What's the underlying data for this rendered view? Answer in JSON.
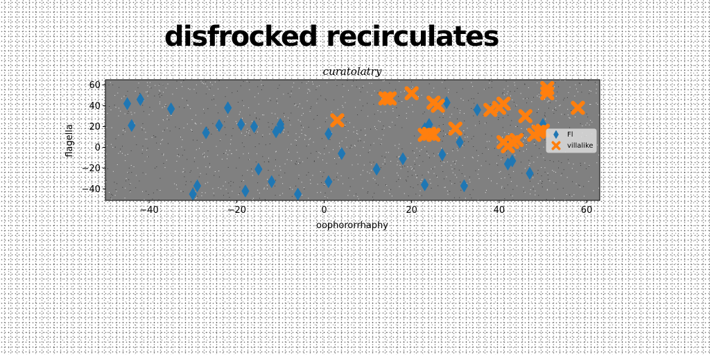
{
  "header": {
    "title": "disfrocked recirculates"
  },
  "chart_data": {
    "type": "scatter",
    "title": "curatolatry",
    "xlabel": "oophororrhaphy",
    "ylabel": "flagella",
    "xlim": [
      -50,
      63
    ],
    "ylim": [
      -51,
      65
    ],
    "x_ticks": [
      -40,
      -20,
      0,
      20,
      40,
      60
    ],
    "y_ticks": [
      -40,
      -20,
      0,
      20,
      40,
      60
    ],
    "grid": false,
    "legend_position": "right",
    "plot_background": "#808080",
    "series": [
      {
        "name": "Fl",
        "marker": "diamond",
        "color": "#1f77b4",
        "points": [
          [
            -45,
            42
          ],
          [
            -44,
            21
          ],
          [
            -42,
            46
          ],
          [
            -35,
            37
          ],
          [
            -30,
            -45
          ],
          [
            -29,
            -37
          ],
          [
            -27,
            14
          ],
          [
            -24,
            21
          ],
          [
            -22,
            38
          ],
          [
            -19,
            22
          ],
          [
            -18,
            -42
          ],
          [
            -16,
            20
          ],
          [
            -15,
            -21
          ],
          [
            -12,
            -33
          ],
          [
            -11,
            15
          ],
          [
            -10,
            19
          ],
          [
            -10,
            22
          ],
          [
            -6,
            -45
          ],
          [
            1,
            13
          ],
          [
            1,
            -33
          ],
          [
            4,
            -6
          ],
          [
            12,
            -21
          ],
          [
            18,
            -11
          ],
          [
            23,
            18
          ],
          [
            24,
            22
          ],
          [
            23,
            -36
          ],
          [
            27,
            -7
          ],
          [
            28,
            43
          ],
          [
            31,
            5
          ],
          [
            32,
            -37
          ],
          [
            35,
            36
          ],
          [
            42,
            -16
          ],
          [
            43,
            -13
          ],
          [
            47,
            -25
          ],
          [
            50,
            22
          ]
        ]
      },
      {
        "name": "villalike",
        "marker": "x",
        "color": "#ff7f0e",
        "points": [
          [
            3,
            26
          ],
          [
            14,
            47
          ],
          [
            15,
            47
          ],
          [
            20,
            52
          ],
          [
            23,
            12
          ],
          [
            24,
            13
          ],
          [
            25,
            12
          ],
          [
            25,
            43
          ],
          [
            26,
            40
          ],
          [
            30,
            18
          ],
          [
            38,
            36
          ],
          [
            40,
            38
          ],
          [
            41,
            5
          ],
          [
            41,
            42
          ],
          [
            42,
            1
          ],
          [
            43,
            5
          ],
          [
            44,
            7
          ],
          [
            46,
            30
          ],
          [
            48,
            12
          ],
          [
            49,
            15
          ],
          [
            50,
            16
          ],
          [
            51,
            57
          ],
          [
            51,
            52
          ],
          [
            58,
            38
          ]
        ]
      }
    ]
  }
}
